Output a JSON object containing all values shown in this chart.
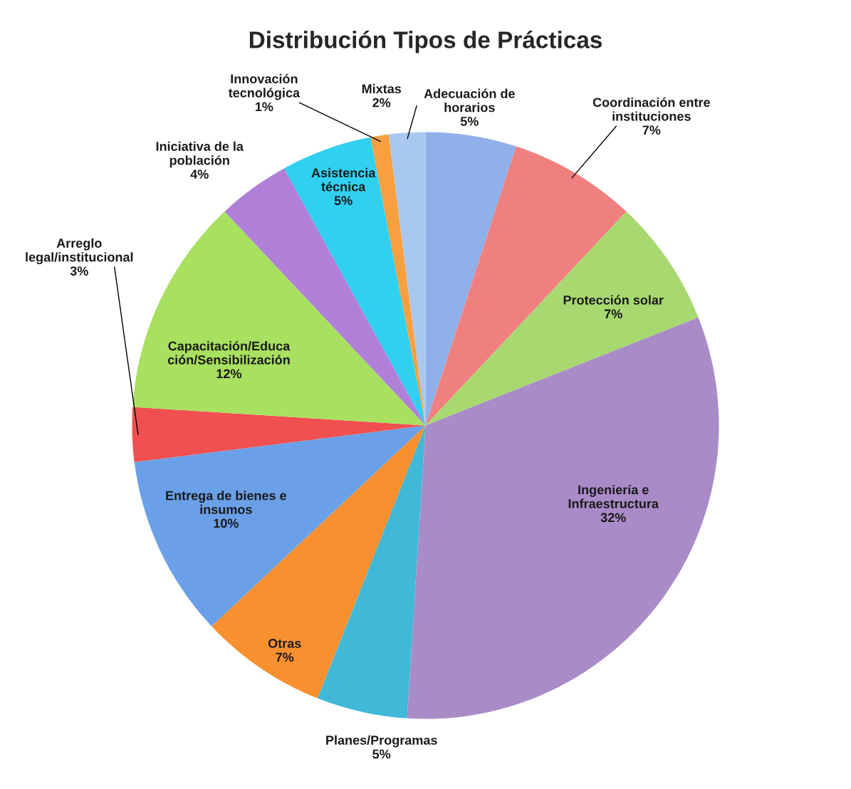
{
  "chart_data": {
    "type": "pie",
    "title": "Distribución Tipos de Prácticas",
    "categories": [
      "Adecuación de\nhorarios",
      "Coordinación entre\ninstituciones",
      "Protección solar",
      "Ingeniería e\nInfraestructura",
      "Planes/Programas",
      "Otras",
      "Entrega de bienes e\ninsumos",
      "Arreglo\nlegal/institucional",
      "Capacitación/Educa\nción/Sensibilización",
      "Iniciativa de la\npoblación",
      "Asistencia\ntécnica",
      "Innovación\ntecnológica",
      "Mixtas"
    ],
    "values": [
      5,
      7,
      7,
      32,
      5,
      7,
      10,
      3,
      12,
      4,
      5,
      1,
      2
    ],
    "value_labels": [
      "5%",
      "7%",
      "7%",
      "32%",
      "5%",
      "7%",
      "10%",
      "3%",
      "12%",
      "4%",
      "5%",
      "1%",
      "2%"
    ],
    "colors": [
      "#8fb0e8",
      "#f08080",
      "#a8d870",
      "#a98bc8",
      "#40b8d8",
      "#f89030",
      "#6aa0e8",
      "#f05050",
      "#a8e060",
      "#b080d8",
      "#30d0f0",
      "#f8a040",
      "#a8c8f0"
    ]
  }
}
